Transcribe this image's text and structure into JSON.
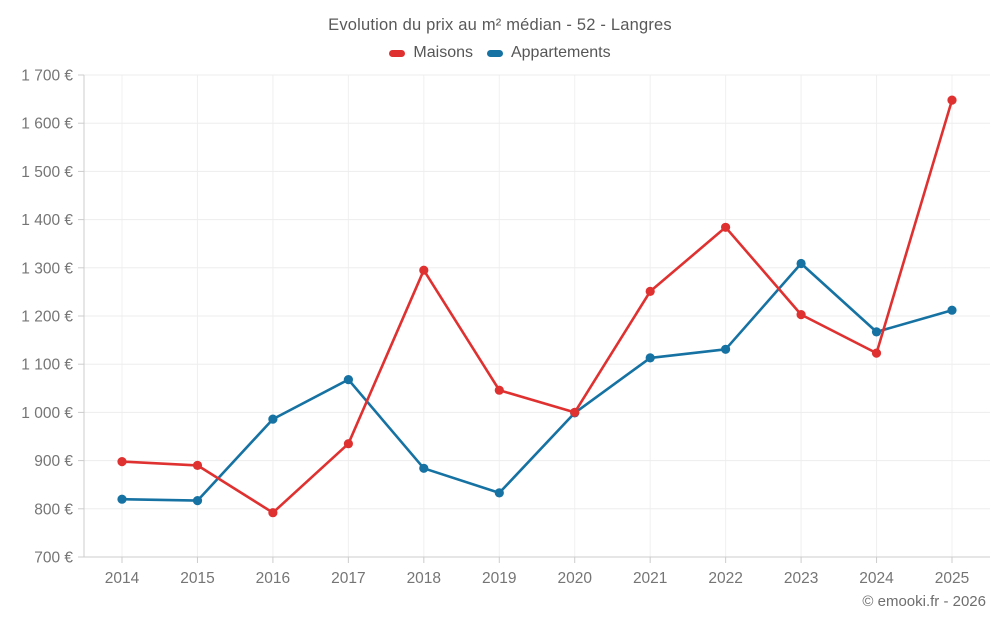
{
  "header": {
    "title": "Evolution du prix au m² médian - 52 - Langres"
  },
  "footer": {
    "credit": "© emooki.fr - 2026"
  },
  "colors": {
    "maisons": "#e03131",
    "appartements": "#1572a2",
    "grid": "#ededed",
    "axis": "#cccccc",
    "tick_text": "#757575",
    "title_text": "#595959"
  },
  "chart_data": {
    "type": "line",
    "title": "Evolution du prix au m² médian - 52 - Langres",
    "x": [
      2014,
      2015,
      2016,
      2017,
      2018,
      2019,
      2020,
      2021,
      2022,
      2023,
      2024,
      2025
    ],
    "series": [
      {
        "name": "Maisons",
        "color": "#e03131",
        "values": [
          898,
          890,
          792,
          935,
          1295,
          1046,
          1000,
          1251,
          1384,
          1203,
          1123,
          1648
        ]
      },
      {
        "name": "Appartements",
        "color": "#1572a2",
        "values": [
          820,
          817,
          986,
          1068,
          884,
          833,
          999,
          1113,
          1131,
          1309,
          1167,
          1212
        ]
      }
    ],
    "ylim": [
      700,
      1700
    ],
    "ytick_step": 100,
    "ytick_suffix": " €",
    "grid": true,
    "markers": true,
    "legend_position": "top",
    "footer": "© emooki.fr - 2026"
  }
}
